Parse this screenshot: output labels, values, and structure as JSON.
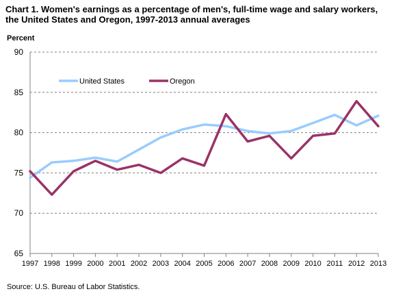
{
  "chart_data": {
    "type": "line",
    "title": "Chart 1. Women's earnings as a percentage of men's, full-time wage and salary workers, the United States and Oregon, 1997-2013  annual averages",
    "ylabel": "Percent",
    "xlabel": "",
    "categories": [
      "1997",
      "1998",
      "1999",
      "2000",
      "2001",
      "2002",
      "2003",
      "2004",
      "2005",
      "2006",
      "2007",
      "2008",
      "2009",
      "2010",
      "2011",
      "2012",
      "2013"
    ],
    "ylim": [
      65,
      90
    ],
    "yticks": [
      "65",
      "70",
      "75",
      "80",
      "85",
      "90"
    ],
    "grid": true,
    "legend_position": "top-left, inside plot",
    "series": [
      {
        "name": "United States",
        "color": "#99ccff",
        "values": [
          74.4,
          76.3,
          76.5,
          76.9,
          76.4,
          77.9,
          79.4,
          80.4,
          81.0,
          80.8,
          80.2,
          79.9,
          80.2,
          81.2,
          82.2,
          80.9,
          82.1
        ]
      },
      {
        "name": "Oregon",
        "color": "#993366",
        "values": [
          75.2,
          72.3,
          75.2,
          76.5,
          75.4,
          76.0,
          75.0,
          76.8,
          75.9,
          82.3,
          78.9,
          79.6,
          76.8,
          79.6,
          79.9,
          83.9,
          80.8
        ]
      }
    ]
  },
  "source": "Source: U.S.  Bureau of Labor Statistics."
}
